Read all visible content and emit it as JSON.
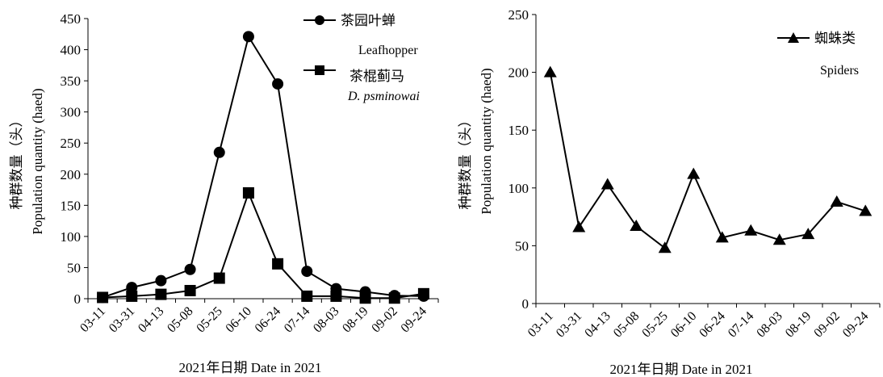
{
  "chart_data": [
    {
      "type": "line",
      "ylabel_cn": "种群数量（头）",
      "ylabel_en": "Population quantity (haed)",
      "xlabel": "2021年日期 Date in 2021",
      "ylim": [
        0,
        450
      ],
      "yticks": [
        "0",
        "50",
        "100",
        "150",
        "200",
        "250",
        "300",
        "350",
        "400",
        "450"
      ],
      "categories": [
        "03-11",
        "03-31",
        "04-13",
        "05-08",
        "05-25",
        "06-10",
        "06-24",
        "07-14",
        "08-03",
        "08-19",
        "09-02",
        "09-24"
      ],
      "legend_position": "top-right",
      "series": [
        {
          "name_cn": "茶园叶蝉",
          "name_en": "Leafhopper",
          "marker": "circle",
          "values": [
            2,
            18,
            29,
            47,
            235,
            421,
            345,
            44,
            16,
            11,
            5,
            4
          ]
        },
        {
          "name_cn": "茶棍蓟马",
          "name_en": "D. psminowai",
          "marker": "square",
          "values": [
            2,
            4,
            7,
            13,
            33,
            170,
            56,
            4,
            4,
            1,
            1,
            8
          ]
        }
      ]
    },
    {
      "type": "line",
      "ylabel_cn": "种群数量（头）",
      "ylabel_en": "Population quantity (haed)",
      "xlabel": "2021年日期 Date in 2021",
      "ylim": [
        0,
        250
      ],
      "yticks": [
        "0",
        "50",
        "100",
        "150",
        "200",
        "250"
      ],
      "categories": [
        "03-11",
        "03-31",
        "04-13",
        "05-08",
        "05-25",
        "06-10",
        "06-24",
        "07-14",
        "08-03",
        "08-19",
        "09-02",
        "09-24"
      ],
      "legend_position": "top-right",
      "series": [
        {
          "name_cn": "蜘蛛类",
          "name_en": "Spiders",
          "marker": "triangle",
          "values": [
            200,
            66,
            103,
            67,
            48,
            112,
            57,
            63,
            55,
            60,
            88,
            80
          ]
        }
      ]
    }
  ]
}
